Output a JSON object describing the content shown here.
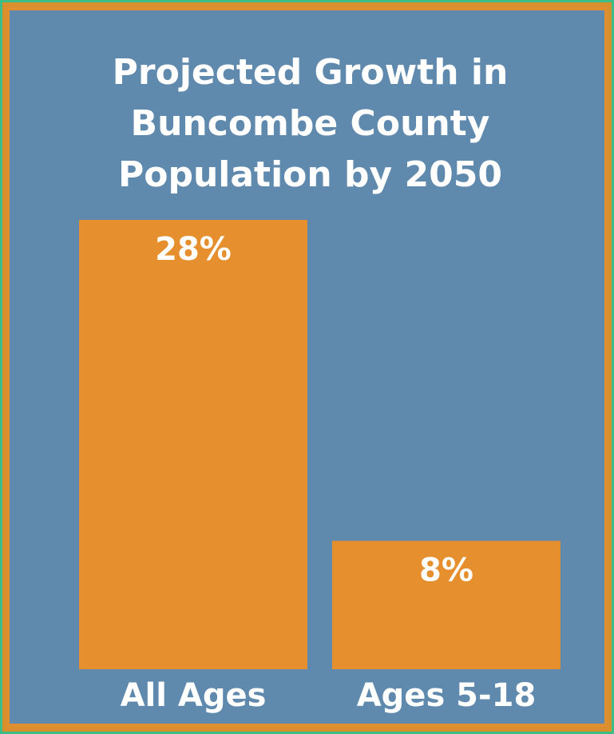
{
  "colors": {
    "background": "#5f89ad",
    "bar": "#e58f2f",
    "border": "#e08f2e",
    "outer_border": "#3dbd86",
    "text": "#ffffff"
  },
  "chart_data": {
    "type": "bar",
    "title": "Projected Growth in\nBuncombe County\nPopulation by 2050",
    "categories": [
      "All Ages",
      "Ages 5-18"
    ],
    "values": [
      28,
      8
    ],
    "value_labels": [
      "28%",
      "8%"
    ],
    "unit": "%",
    "ylim": [
      0,
      28
    ],
    "grid": false,
    "xlabel": "",
    "ylabel": ""
  }
}
